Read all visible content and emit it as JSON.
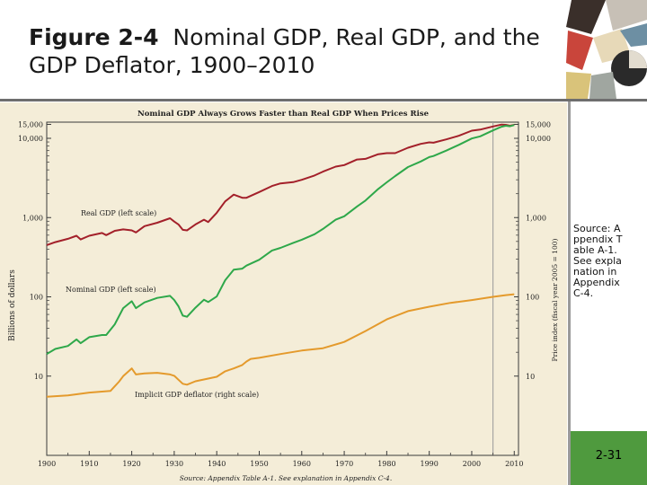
{
  "slide": {
    "title_prefix": "Figure 2-4",
    "title_text": "Nominal GDP, Real GDP, and the GDP Deflator, 1900–2010",
    "source_note": "Source: Appendix Table A-1. See explanation in Appendix C-4.",
    "page_number": "2-31",
    "accent_color": "#4f9a3e"
  },
  "chart_data": {
    "type": "line",
    "title": "Nominal GDP Always Grows Faster than Real GDP When Prices Rise",
    "ylabel": "Billions of dollars",
    "ylabel_right": "Price index (fiscal year 2005 = 100)",
    "source": "Source: Appendix Table A-1. See explanation in Appendix C-4.",
    "x_ticks": [
      "1900",
      "1910",
      "1920",
      "1930",
      "1940",
      "1950",
      "1960",
      "1970",
      "1980",
      "1990",
      "2000",
      "2010"
    ],
    "y_ticks": [
      {
        "value": 10,
        "label": "10"
      },
      {
        "value": 100,
        "label": "100"
      },
      {
        "value": 1000,
        "label": "1,000"
      },
      {
        "value": 10000,
        "label": "10,000"
      },
      {
        "value": 15000,
        "label": "15,000"
      }
    ],
    "yscale": "log",
    "xlim": [
      1900,
      2011
    ],
    "ylim": [
      1,
      16000
    ],
    "marker_year": 2005,
    "series": [
      {
        "name": "Real GDP (left scale)",
        "color": "#a3202a",
        "x": [
          1900,
          1902,
          1905,
          1907,
          1908,
          1910,
          1913,
          1914,
          1916,
          1918,
          1920,
          1921,
          1923,
          1926,
          1929,
          1930,
          1931,
          1932,
          1933,
          1935,
          1937,
          1938,
          1940,
          1942,
          1944,
          1946,
          1947,
          1950,
          1953,
          1955,
          1958,
          1960,
          1963,
          1965,
          1968,
          1970,
          1973,
          1975,
          1978,
          1980,
          1982,
          1985,
          1988,
          1990,
          1991,
          1994,
          1997,
          2000,
          2002,
          2005,
          2007,
          2008,
          2009,
          2010
        ],
        "y": [
          450,
          490,
          540,
          590,
          530,
          590,
          640,
          600,
          680,
          710,
          690,
          650,
          780,
          860,
          980,
          890,
          820,
          700,
          690,
          820,
          940,
          880,
          1150,
          1600,
          1950,
          1780,
          1780,
          2100,
          2500,
          2700,
          2800,
          3000,
          3400,
          3800,
          4400,
          4600,
          5400,
          5500,
          6300,
          6500,
          6500,
          7600,
          8500,
          8900,
          8800,
          9700,
          10800,
          12500,
          12900,
          14100,
          14900,
          14800,
          14400,
          14800
        ]
      },
      {
        "name": "Nominal GDP (left scale)",
        "color": "#2ea84a",
        "x": [
          1900,
          1902,
          1905,
          1907,
          1908,
          1910,
          1913,
          1914,
          1916,
          1918,
          1920,
          1921,
          1923,
          1926,
          1929,
          1930,
          1931,
          1932,
          1933,
          1935,
          1937,
          1938,
          1940,
          1942,
          1944,
          1946,
          1947,
          1950,
          1953,
          1955,
          1958,
          1960,
          1963,
          1965,
          1968,
          1970,
          1973,
          1975,
          1978,
          1980,
          1982,
          1985,
          1988,
          1990,
          1991,
          1994,
          1997,
          2000,
          2002,
          2005,
          2007,
          2008,
          2009,
          2010
        ],
        "y": [
          19,
          22,
          24,
          29,
          26,
          31,
          33,
          33,
          45,
          72,
          88,
          72,
          85,
          97,
          103,
          91,
          76,
          58,
          56,
          73,
          92,
          86,
          101,
          162,
          220,
          227,
          248,
          294,
          384,
          415,
          480,
          526,
          617,
          719,
          941,
          1038,
          1382,
          1638,
          2294,
          2788,
          3345,
          4339,
          5100,
          5800,
          5990,
          7000,
          8300,
          9950,
          10600,
          12600,
          14000,
          14400,
          14200,
          14700
        ]
      },
      {
        "name": "Implicit GDP deflator (right scale)",
        "color": "#e49a2c",
        "x": [
          1900,
          1905,
          1910,
          1915,
          1917,
          1918,
          1920,
          1921,
          1923,
          1926,
          1929,
          1930,
          1931,
          1932,
          1933,
          1935,
          1940,
          1942,
          1944,
          1946,
          1947,
          1948,
          1950,
          1955,
          1960,
          1965,
          1970,
          1975,
          1980,
          1985,
          1990,
          1995,
          2000,
          2005,
          2008,
          2010
        ],
        "y": [
          5.5,
          5.7,
          6.2,
          6.5,
          8.5,
          10,
          12.5,
          10.5,
          10.8,
          11,
          10.5,
          10.1,
          9,
          8,
          7.8,
          8.6,
          9.8,
          11.5,
          12.5,
          13.8,
          15.3,
          16.5,
          17,
          19,
          21,
          22.5,
          27,
          37,
          52,
          66,
          75,
          84,
          91,
          100,
          105,
          108
        ]
      }
    ],
    "series_labels": [
      "Real GDP (left scale)",
      "Nominal GDP (left scale)",
      "Implicit GDP deflator (right scale)"
    ]
  }
}
